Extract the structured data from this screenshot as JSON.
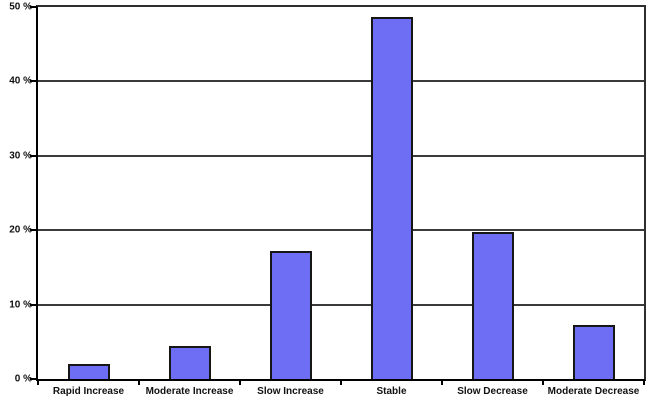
{
  "chart_data": {
    "type": "bar",
    "title": "",
    "categories": [
      "Rapid Increase",
      "Moderate Increase",
      "Slow Increase",
      "Stable",
      "Slow Decrease",
      "Moderate Decrease"
    ],
    "values": [
      2,
      4.5,
      17.2,
      48.6,
      19.8,
      7.3
    ],
    "xlabel": "",
    "ylabel": "",
    "ylim": [
      0,
      50
    ],
    "ytick_values": [
      0,
      10,
      20,
      30,
      40,
      50
    ],
    "ytick_labels": [
      "0 %",
      "10 %",
      "20 %",
      "30 %",
      "40 %",
      "50 %"
    ],
    "grid": true,
    "legend": false,
    "colors": {
      "bar_fill": "#6e6ef4",
      "bar_border": "#161616",
      "gridline": "#3a3a3a",
      "plot_border": "#2e2e2e",
      "axis": "#000000",
      "text": "#111111",
      "background": "#ffffff"
    }
  }
}
